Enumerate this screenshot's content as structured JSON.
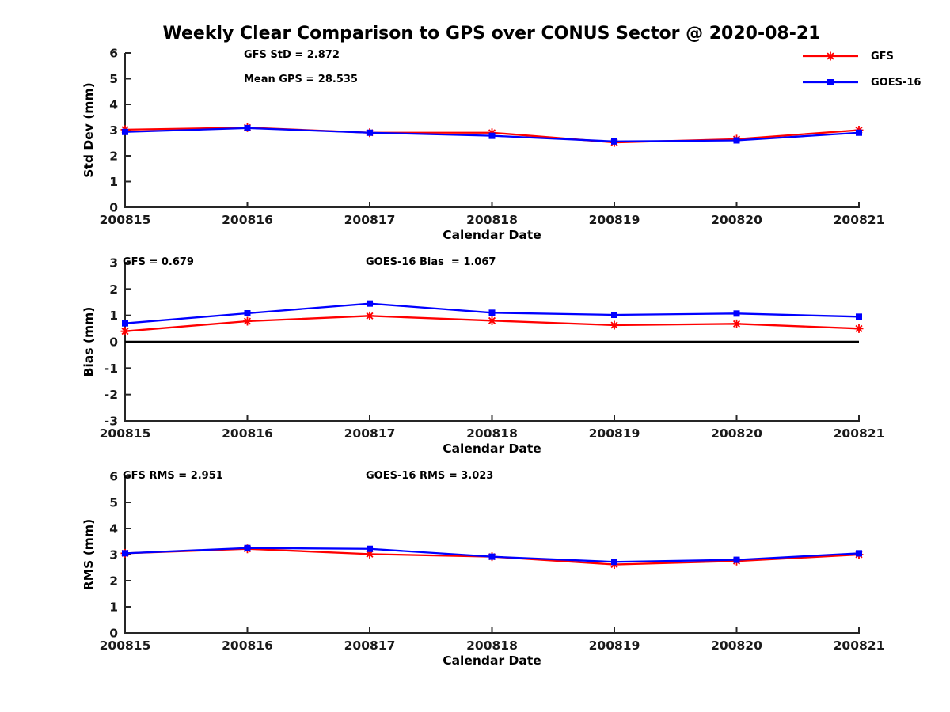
{
  "title": "Weekly Clear Comparison to GPS over CONUS Sector @ 2020-08-21",
  "colors": {
    "gfs": "#FF0000",
    "goes16": "#0000FF",
    "axis": "#262626",
    "text": "#000000",
    "zero_line": "#000000",
    "background": "#FFFFFF"
  },
  "legend": {
    "position": "top-right",
    "entries": [
      {
        "label": "GFS",
        "color": "#FF0000",
        "marker": "asterisk"
      },
      {
        "label": "GOES-16",
        "color": "#0000FF",
        "marker": "square"
      }
    ]
  },
  "chart_data": [
    {
      "type": "line",
      "ylabel": "Std Dev (mm)",
      "xlabel": "Calendar Date",
      "ylim": [
        0,
        6
      ],
      "yticks": [
        0,
        1,
        2,
        3,
        4,
        5,
        6
      ],
      "grid": false,
      "zero_line": false,
      "categories": [
        "200815",
        "200816",
        "200817",
        "200818",
        "200819",
        "200820",
        "200821"
      ],
      "series": [
        {
          "name": "GFS",
          "color": "#FF0000",
          "marker": "asterisk",
          "values": [
            3.02,
            3.1,
            2.9,
            2.9,
            2.52,
            2.65,
            3.0
          ]
        },
        {
          "name": "GOES-16",
          "color": "#0000FF",
          "marker": "square",
          "values": [
            2.93,
            3.08,
            2.9,
            2.78,
            2.56,
            2.6,
            2.9
          ]
        }
      ],
      "annotations": [
        {
          "text": "GFS StD = 2.872"
        },
        {
          "text": "Mean GPS = 28.535"
        }
      ]
    },
    {
      "type": "line",
      "ylabel": "Bias (mm)",
      "xlabel": "Calendar Date",
      "ylim": [
        -3,
        3
      ],
      "yticks": [
        -3,
        -2,
        -1,
        0,
        1,
        2,
        3
      ],
      "grid": false,
      "zero_line": true,
      "categories": [
        "200815",
        "200816",
        "200817",
        "200818",
        "200819",
        "200820",
        "200821"
      ],
      "series": [
        {
          "name": "GFS",
          "color": "#FF0000",
          "marker": "asterisk",
          "values": [
            0.4,
            0.78,
            0.98,
            0.8,
            0.63,
            0.68,
            0.5
          ]
        },
        {
          "name": "GOES-16",
          "color": "#0000FF",
          "marker": "square",
          "values": [
            0.7,
            1.08,
            1.45,
            1.1,
            1.02,
            1.07,
            0.95
          ]
        }
      ],
      "annotations": [
        {
          "text": "GFS = 0.679"
        },
        {
          "text": "GOES-16 Bias  = 1.067"
        }
      ]
    },
    {
      "type": "line",
      "ylabel": "RMS (mm)",
      "xlabel": "Calendar Date",
      "ylim": [
        0,
        6
      ],
      "yticks": [
        0,
        1,
        2,
        3,
        4,
        5,
        6
      ],
      "grid": false,
      "zero_line": false,
      "categories": [
        "200815",
        "200816",
        "200817",
        "200818",
        "200819",
        "200820",
        "200821"
      ],
      "series": [
        {
          "name": "GFS",
          "color": "#FF0000",
          "marker": "asterisk",
          "values": [
            3.05,
            3.22,
            3.02,
            2.92,
            2.62,
            2.75,
            3.0
          ]
        },
        {
          "name": "GOES-16",
          "color": "#0000FF",
          "marker": "square",
          "values": [
            3.05,
            3.25,
            3.22,
            2.92,
            2.72,
            2.8,
            3.05
          ]
        }
      ],
      "annotations": [
        {
          "text": "GFS RMS = 2.951"
        },
        {
          "text": "GOES-16 RMS = 3.023"
        }
      ]
    }
  ]
}
